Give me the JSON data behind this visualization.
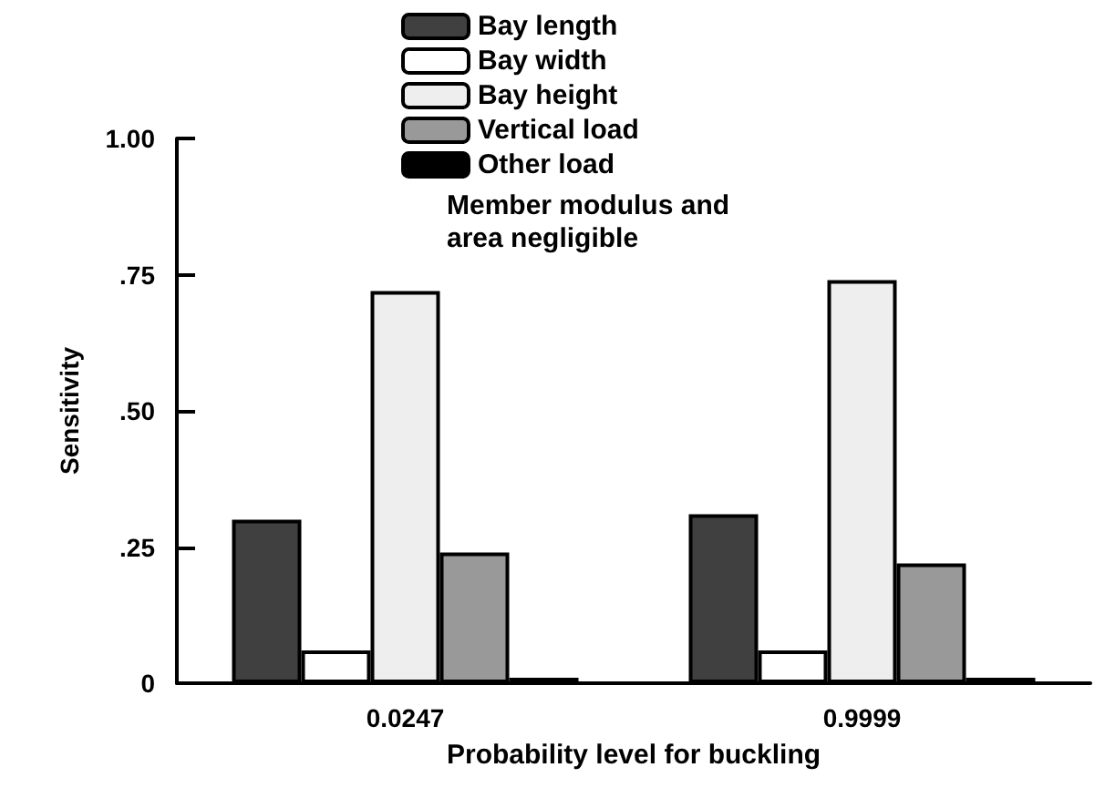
{
  "chart_data": {
    "type": "bar",
    "xlabel": "Probability level for buckling",
    "ylabel": "Sensitivity",
    "categories": [
      "0.0247",
      "0.9999"
    ],
    "series": [
      {
        "name": "Bay length",
        "color": "#404040",
        "values": [
          0.3,
          0.31
        ]
      },
      {
        "name": "Bay width",
        "color": "#ffffff",
        "values": [
          0.06,
          0.06
        ]
      },
      {
        "name": "Bay height",
        "color": "#eeeeee",
        "values": [
          0.72,
          0.74
        ]
      },
      {
        "name": "Vertical load",
        "color": "#999999",
        "values": [
          0.24,
          0.22
        ]
      },
      {
        "name": "Other load",
        "color": "#000000",
        "values": [
          0.01,
          0.01
        ]
      }
    ],
    "ylim": [
      0,
      1
    ],
    "yticks": [
      0,
      {
        "value": 0.25,
        "label": ".25"
      },
      {
        "value": 0.5,
        "label": ".50"
      },
      {
        "value": 0.75,
        "label": ".75"
      },
      {
        "value": 1,
        "label": "1.00"
      }
    ],
    "annotations": [
      "Member modulus and\narea negligible"
    ],
    "legend": "top",
    "grid": false
  }
}
